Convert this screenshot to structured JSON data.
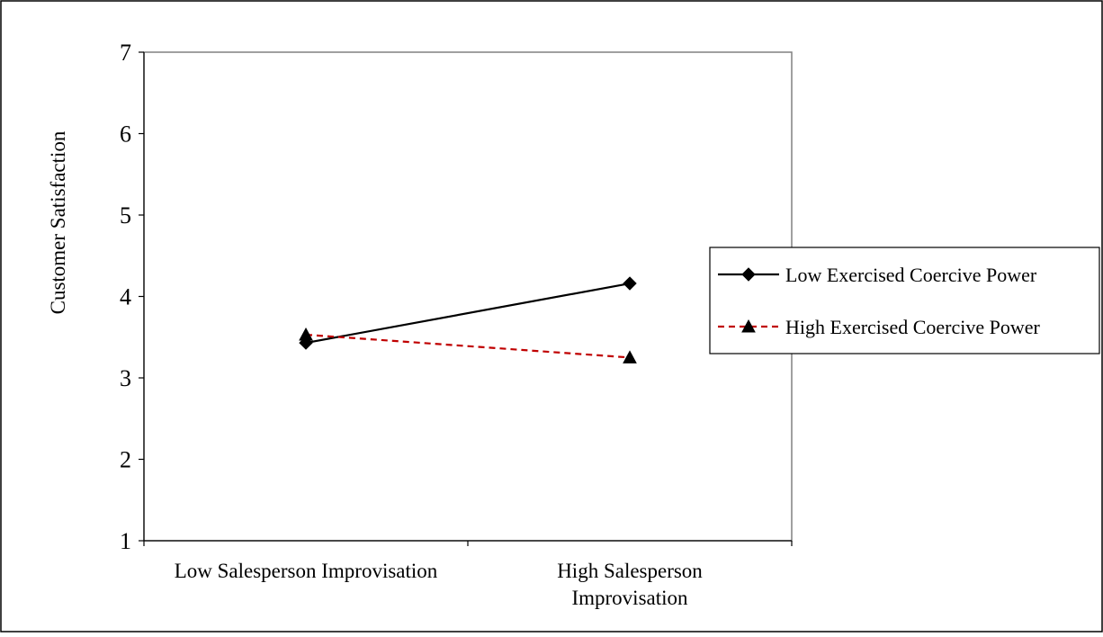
{
  "chart_data": {
    "type": "line",
    "title": "",
    "xlabel": "",
    "ylabel": "Customer Satisfaction",
    "ylim": [
      1,
      7
    ],
    "yticks": [
      "1",
      "2",
      "3",
      "4",
      "5",
      "6",
      "7"
    ],
    "categories": [
      [
        "Low Salesperson Improvisation"
      ],
      [
        "High Salesperson",
        "Improvisation"
      ]
    ],
    "grid": false,
    "legend_position": "right",
    "series": [
      {
        "name": "Low Exercised Coercive Power",
        "values": [
          3.43,
          4.16
        ],
        "color": "#000000",
        "line_style": "solid",
        "marker": "diamond"
      },
      {
        "name": "High Exercised Coercive Power",
        "values": [
          3.53,
          3.25
        ],
        "color": "#c00000",
        "line_style": "dashed",
        "marker": "triangle"
      }
    ]
  }
}
